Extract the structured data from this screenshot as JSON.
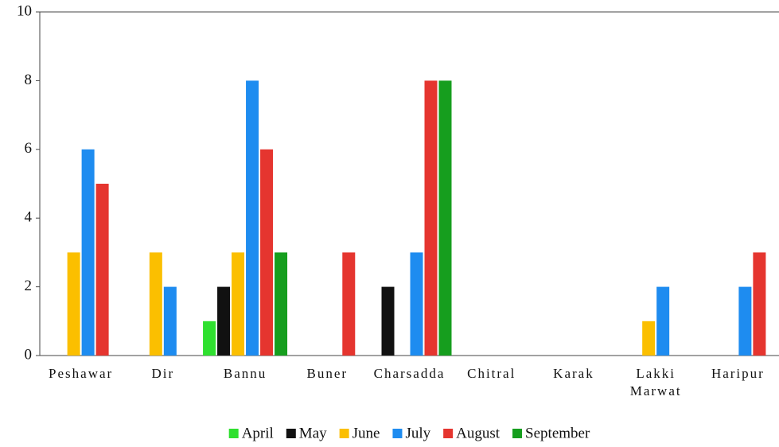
{
  "chart_data": {
    "type": "bar",
    "categories": [
      "Peshawar",
      "Dir",
      "Bannu",
      "Buner",
      "Charsadda",
      "Chitral",
      "Karak",
      "Lakki Marwat",
      "Haripur"
    ],
    "series": [
      {
        "name": "April",
        "color": "#2fe02f",
        "values": [
          0,
          0,
          1,
          0,
          0,
          0,
          0,
          0,
          0
        ]
      },
      {
        "name": "May",
        "color": "#111111",
        "values": [
          0,
          0,
          2,
          0,
          2,
          0,
          0,
          0,
          0
        ]
      },
      {
        "name": "June",
        "color": "#fbbf00",
        "values": [
          3,
          3,
          3,
          0,
          0,
          0,
          0,
          1,
          0
        ]
      },
      {
        "name": "July",
        "color": "#1e8cf0",
        "values": [
          6,
          2,
          8,
          0,
          3,
          0,
          0,
          2,
          2
        ]
      },
      {
        "name": "August",
        "color": "#e5352f",
        "values": [
          5,
          0,
          6,
          3,
          8,
          0,
          0,
          0,
          3
        ]
      },
      {
        "name": "September",
        "color": "#169e1e",
        "values": [
          0,
          0,
          3,
          0,
          8,
          0,
          0,
          0,
          0
        ]
      }
    ],
    "ylim": [
      0,
      10
    ],
    "yticks": [
      0,
      2,
      4,
      6,
      8,
      10
    ],
    "grid": false,
    "legend": "bottom"
  }
}
